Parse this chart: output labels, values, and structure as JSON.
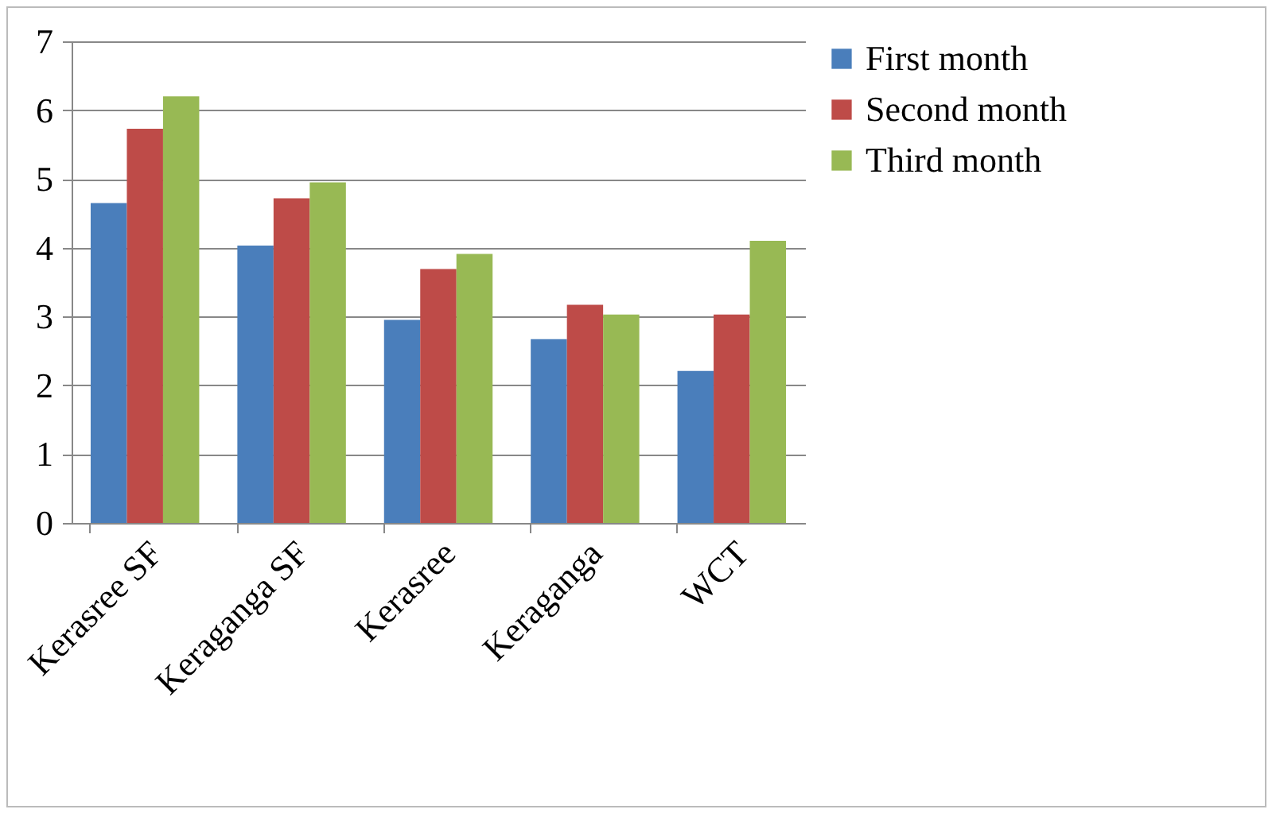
{
  "chart_data": {
    "type": "bar",
    "categories": [
      "Kerasree SF",
      "Keraganga SF",
      "Kerasree",
      "Keraganga",
      "WCT"
    ],
    "series": [
      {
        "name": "First month",
        "color": "#4a7ebb",
        "values": [
          4.65,
          4.03,
          2.95,
          2.67,
          2.21
        ]
      },
      {
        "name": "Second month",
        "color": "#be4b48",
        "values": [
          5.73,
          4.72,
          3.69,
          3.17,
          3.03
        ]
      },
      {
        "name": "Third month",
        "color": "#98b954",
        "values": [
          6.2,
          4.95,
          3.91,
          3.03,
          4.1
        ]
      }
    ],
    "ylim": [
      0,
      7
    ],
    "yticks": [
      0,
      1,
      2,
      3,
      4,
      5,
      6,
      7
    ],
    "grid": "y",
    "legend": "right"
  }
}
